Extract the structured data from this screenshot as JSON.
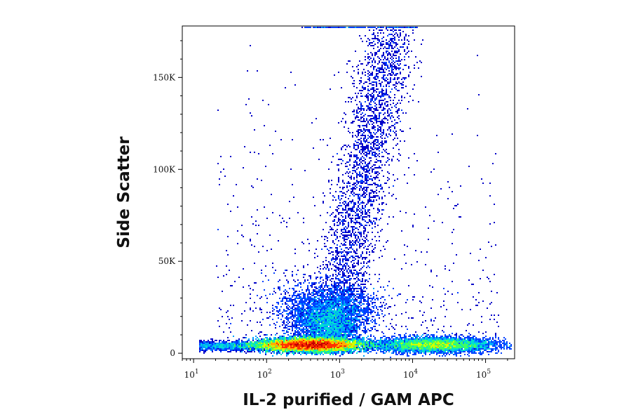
{
  "chart_data": {
    "type": "scatter",
    "subtype": "flow-cytometry-density-dot-plot",
    "xlabel": "IL-2 purified / GAM APC",
    "ylabel": "Side Scatter",
    "x_scale": "log",
    "xlim": [
      7,
      250000
    ],
    "ylim": [
      -3000,
      178000
    ],
    "x_ticks": [
      {
        "value": 10,
        "base": "10",
        "exp": "1"
      },
      {
        "value": 100,
        "base": "10",
        "exp": "2"
      },
      {
        "value": 1000,
        "base": "10",
        "exp": "3"
      },
      {
        "value": 10000,
        "base": "10",
        "exp": "4"
      },
      {
        "value": 100000,
        "base": "10",
        "exp": "5"
      }
    ],
    "y_ticks": [
      {
        "value": 0,
        "label": "0"
      },
      {
        "value": 50000,
        "label": "50K"
      },
      {
        "value": 100000,
        "label": "100K"
      },
      {
        "value": 150000,
        "label": "150K"
      }
    ],
    "color_scale": [
      "#0000c8",
      "#0040ff",
      "#00a0ff",
      "#00e0d0",
      "#40ff60",
      "#d0ff00",
      "#ffb000",
      "#ff3000",
      "#c00000"
    ],
    "populations": [
      {
        "name": "negative-low-ssc",
        "x_center": 400,
        "x_spread_decades": 0.35,
        "y_center": 4500,
        "y_spread": 1800,
        "relative_density": 1.0
      },
      {
        "name": "negative-mid-ssc",
        "x_center": 700,
        "x_spread_decades": 0.25,
        "y_center": 18000,
        "y_spread": 9000,
        "relative_density": 0.45
      },
      {
        "name": "high-ssc-stream",
        "x_center": 3500,
        "x_spread_decades": 0.18,
        "y_center": 110000,
        "y_spread": 35000,
        "relative_density": 0.2
      },
      {
        "name": "positive-low-ssc",
        "x_center": 20000,
        "x_spread_decades": 0.4,
        "y_center": 4500,
        "y_spread": 2000,
        "relative_density": 0.6
      }
    ]
  }
}
